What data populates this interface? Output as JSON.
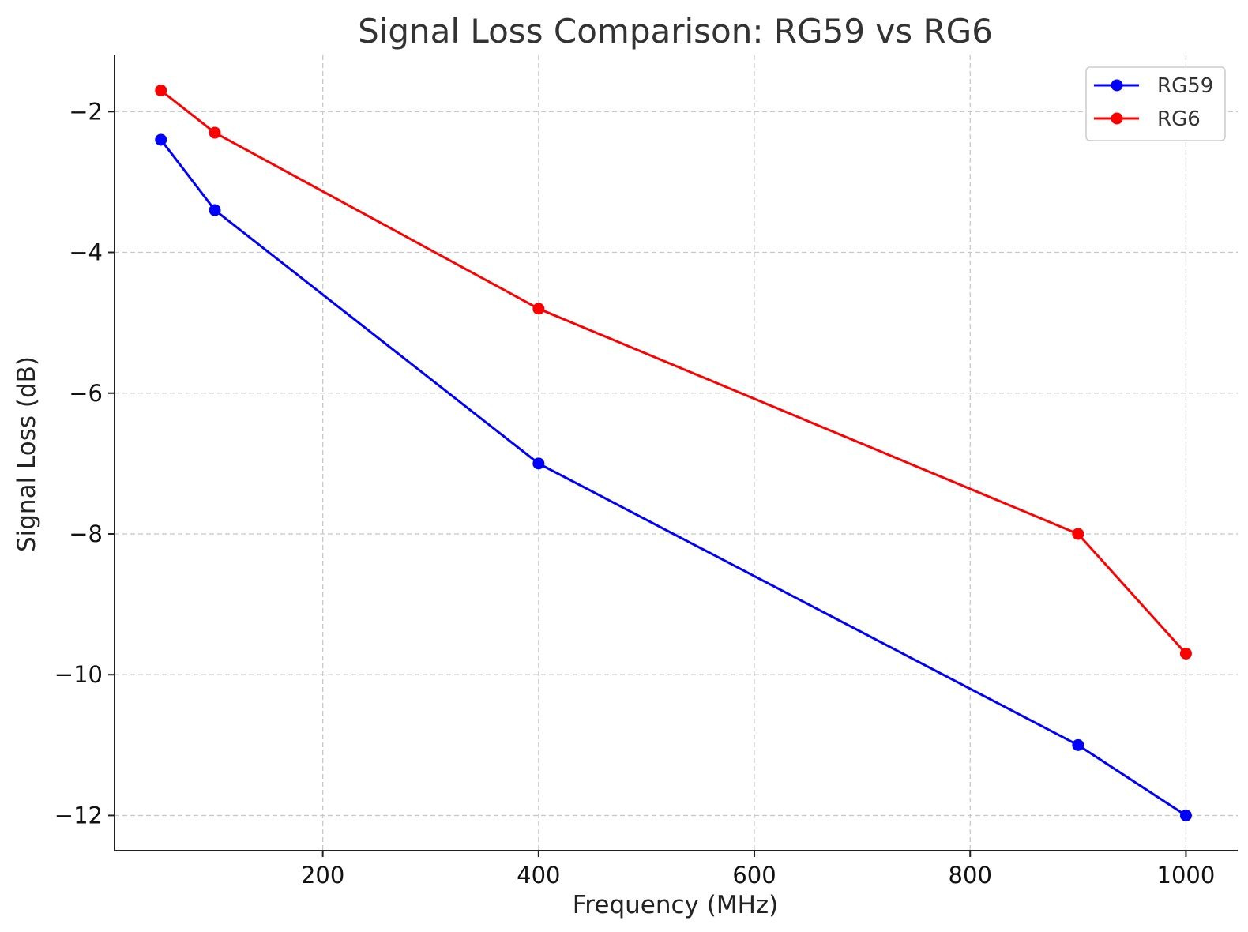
{
  "chart_data": {
    "type": "line",
    "title": "Signal Loss Comparison: RG59 vs RG6",
    "xlabel": "Frequency (MHz)",
    "ylabel": "Signal Loss (dB)",
    "xlim": [
      7,
      1048
    ],
    "ylim": [
      -12.5,
      -1.2
    ],
    "xticks": [
      200,
      400,
      600,
      800,
      1000
    ],
    "yticks": [
      -2,
      -4,
      -6,
      -8,
      -10,
      -12
    ],
    "xtick_labels": [
      "200",
      "400",
      "600",
      "800",
      "1000"
    ],
    "ytick_labels": [
      "−2",
      "−4",
      "−6",
      "−8",
      "−10",
      "−12"
    ],
    "grid": true,
    "legend_position": "top-right",
    "series": [
      {
        "name": "RG59",
        "color": "#0000ff",
        "x": [
          50,
          100,
          400,
          900,
          1000
        ],
        "y": [
          -2.4,
          -3.4,
          -7.0,
          -11.0,
          -12.0
        ]
      },
      {
        "name": "RG6",
        "color": "#ff0000",
        "x": [
          50,
          100,
          400,
          900,
          1000
        ],
        "y": [
          -1.7,
          -2.3,
          -4.8,
          -8.0,
          -9.7
        ]
      }
    ]
  }
}
